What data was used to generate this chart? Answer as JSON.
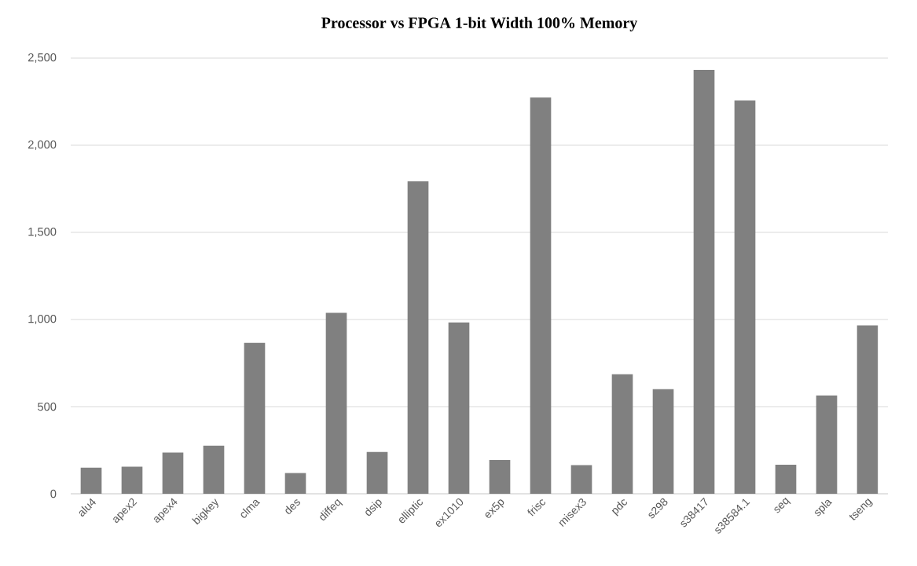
{
  "chart_data": {
    "type": "bar",
    "title": "Processor vs FPGA        1-bit Width    100% Memory",
    "categories": [
      "alu4",
      "apex2",
      "apex4",
      "bigkey",
      "clma",
      "des",
      "diffeq",
      "dsip",
      "elliptic",
      "ex1010",
      "ex5p",
      "frisc",
      "misex3",
      "pdc",
      "s298",
      "s38417",
      "s38584.1",
      "seq",
      "spla",
      "tseng"
    ],
    "values": [
      150,
      155,
      236,
      276,
      866,
      119,
      1038,
      240,
      1793,
      983,
      194,
      2274,
      164,
      686,
      600,
      2432,
      2257,
      167,
      564,
      966
    ],
    "color": "#808080",
    "ylim": [
      0,
      2500
    ],
    "yticks": [
      {
        "value": 0,
        "label": "0"
      },
      {
        "value": 500,
        "label": "500"
      },
      {
        "value": 1000,
        "label": "1,000"
      },
      {
        "value": 1500,
        "label": "1,500"
      },
      {
        "value": 2000,
        "label": "2,000"
      },
      {
        "value": 2500,
        "label": "2,500"
      }
    ],
    "grid": "y"
  }
}
